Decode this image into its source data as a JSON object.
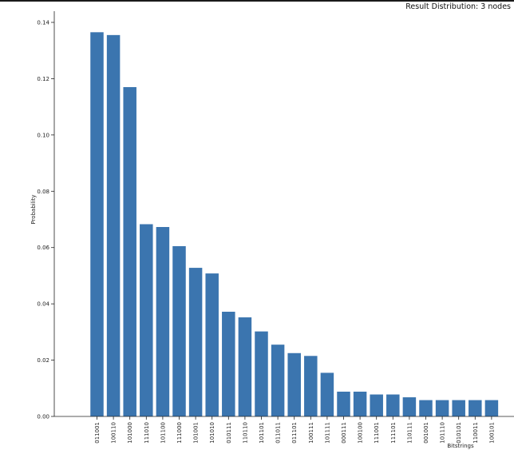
{
  "chart_data": {
    "type": "bar",
    "title": "Result Distribution: 3 nodes",
    "xlabel": "Bitstrings",
    "ylabel": "Probability",
    "ylim": [
      0,
      0.14
    ],
    "yticks": [
      "0.00",
      "0.02",
      "0.04",
      "0.06",
      "0.08",
      "0.10",
      "0.12",
      "0.14"
    ],
    "grid": false,
    "bar_color": "#3b75af",
    "categories": [
      "011001",
      "100110",
      "101000",
      "111010",
      "101100",
      "111000",
      "101001",
      "101010",
      "010111",
      "110110",
      "101101",
      "011011",
      "011101",
      "100111",
      "101111",
      "000111",
      "100100",
      "111001",
      "111101",
      "110111",
      "001001",
      "101110",
      "010101",
      "110011",
      "100101"
    ],
    "values": [
      0.1365,
      0.1355,
      0.117,
      0.0683,
      0.0673,
      0.0605,
      0.0528,
      0.0508,
      0.0372,
      0.0352,
      0.0302,
      0.0255,
      0.0225,
      0.0215,
      0.0155,
      0.0088,
      0.0088,
      0.0078,
      0.0078,
      0.0068,
      0.0058,
      0.0058,
      0.0058,
      0.0058,
      0.0058
    ]
  }
}
